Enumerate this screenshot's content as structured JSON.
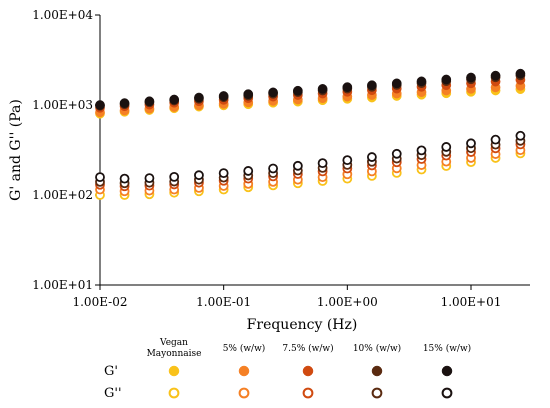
{
  "chart_data": {
    "type": "scatter",
    "xlabel": "Frequency (Hz)",
    "ylabel": "G' and G'' (Pa)",
    "x_scale": "log",
    "y_scale": "log",
    "xlim": [
      0.01,
      30
    ],
    "ylim": [
      10,
      10000
    ],
    "x_ticks": [
      "1.00E-02",
      "1.00E-01",
      "1.00E+00",
      "1.00E+01"
    ],
    "y_ticks": [
      "1.00E+01",
      "1.00E+02",
      "1.00E+03",
      "1.00E+04"
    ],
    "grid": false,
    "x": [
      0.01,
      0.0158,
      0.0251,
      0.0398,
      0.0631,
      0.1,
      0.158,
      0.251,
      0.398,
      0.631,
      1.0,
      1.58,
      2.51,
      3.98,
      6.31,
      10.0,
      15.8,
      25.1
    ],
    "series": [
      {
        "group": "Vegan Mayonnaise",
        "modulus": "G'",
        "color": "#F9C21A",
        "filled": true,
        "values": [
          800,
          840,
          880,
          920,
          960,
          990,
          1020,
          1060,
          1090,
          1130,
          1170,
          1210,
          1260,
          1300,
          1350,
          1400,
          1450,
          1500
        ]
      },
      {
        "group": "Vegan Mayonnaise",
        "modulus": "G''",
        "color": "#F9C21A",
        "filled": false,
        "values": [
          100,
          100,
          102,
          106,
          110,
          115,
          122,
          128,
          135,
          143,
          152,
          163,
          176,
          192,
          210,
          232,
          258,
          290
        ]
      },
      {
        "group": "5% (w/w)",
        "modulus": "G'",
        "color": "#F58025",
        "filled": true,
        "values": [
          830,
          870,
          910,
          950,
          990,
          1030,
          1070,
          1110,
          1150,
          1190,
          1240,
          1290,
          1340,
          1390,
          1450,
          1510,
          1570,
          1630
        ]
      },
      {
        "group": "5% (w/w)",
        "modulus": "G''",
        "color": "#F58025",
        "filled": false,
        "values": [
          115,
          110,
          112,
          115,
          120,
          126,
          133,
          140,
          148,
          158,
          170,
          183,
          198,
          215,
          235,
          258,
          285,
          315
        ]
      },
      {
        "group": "7.5% (w/w)",
        "modulus": "G'",
        "color": "#D04A10",
        "filled": true,
        "values": [
          930,
          970,
          1010,
          1060,
          1100,
          1140,
          1190,
          1240,
          1290,
          1340,
          1400,
          1460,
          1520,
          1590,
          1660,
          1740,
          1820,
          1900
        ]
      },
      {
        "group": "7.5% (w/w)",
        "modulus": "G''",
        "color": "#D04A10",
        "filled": false,
        "values": [
          130,
          125,
          127,
          131,
          137,
          144,
          152,
          161,
          171,
          183,
          197,
          213,
          231,
          251,
          274,
          300,
          330,
          365
        ]
      },
      {
        "group": "10% (w/w)",
        "modulus": "G'",
        "color": "#5A2A10",
        "filled": true,
        "values": [
          980,
          1020,
          1070,
          1120,
          1170,
          1220,
          1270,
          1330,
          1390,
          1450,
          1520,
          1590,
          1670,
          1750,
          1840,
          1930,
          2030,
          2130
        ]
      },
      {
        "group": "10% (w/w)",
        "modulus": "G''",
        "color": "#5A2A10",
        "filled": false,
        "values": [
          140,
          135,
          137,
          141,
          148,
          156,
          165,
          175,
          187,
          200,
          216,
          234,
          254,
          277,
          302,
          331,
          363,
          400
        ]
      },
      {
        "group": "15% (w/w)",
        "modulus": "G'",
        "color": "#1A1110",
        "filled": true,
        "values": [
          1000,
          1050,
          1100,
          1150,
          1210,
          1260,
          1320,
          1380,
          1440,
          1510,
          1580,
          1660,
          1740,
          1830,
          1920,
          2020,
          2120,
          2230
        ]
      },
      {
        "group": "15% (w/w)",
        "modulus": "G''",
        "color": "#1A1110",
        "filled": false,
        "values": [
          158,
          152,
          154,
          159,
          166,
          175,
          185,
          197,
          211,
          226,
          244,
          264,
          287,
          313,
          342,
          375,
          412,
          455
        ]
      }
    ],
    "legend": {
      "placement": "bottom",
      "groups": [
        "Vegan\nMayonnaise",
        "5% (w/w)",
        "7.5% (w/w)",
        "10% (w/w)",
        "15% (w/w)"
      ],
      "row_labels": [
        "G'",
        "G''"
      ]
    }
  }
}
